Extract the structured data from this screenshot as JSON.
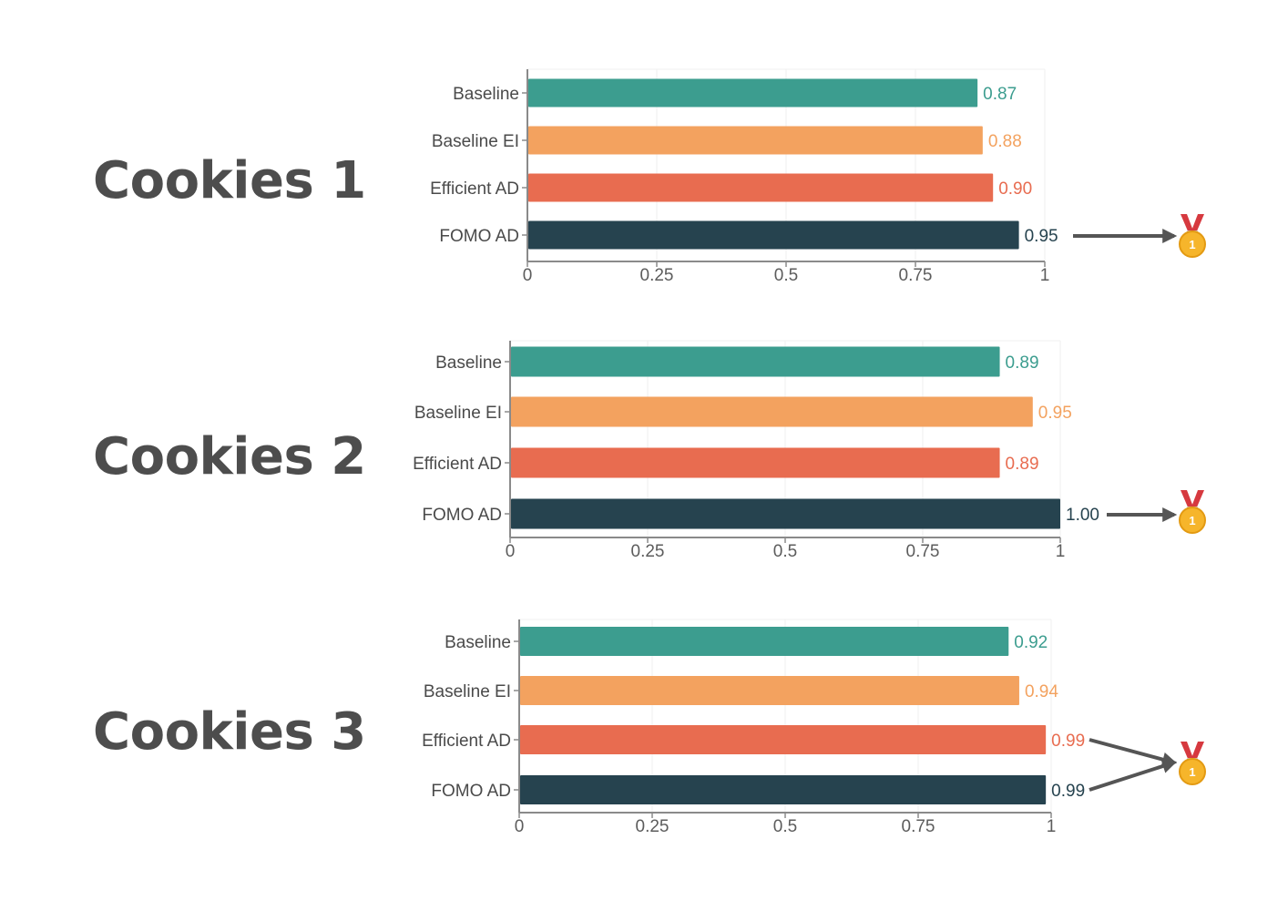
{
  "chart_data": [
    {
      "type": "bar",
      "title": "Cookies 1",
      "orientation": "horizontal",
      "categories": [
        "Baseline",
        "Baseline EI",
        "Efficient AD",
        "FOMO AD"
      ],
      "values": [
        0.87,
        0.88,
        0.9,
        0.95
      ],
      "value_labels": [
        "0.87",
        "0.88",
        "0.90",
        "0.95"
      ],
      "xlim": [
        0,
        1
      ],
      "xticks": [
        "0",
        "0.25",
        "0.5",
        "0.75",
        "1"
      ],
      "winners": [
        3
      ],
      "grid": true
    },
    {
      "type": "bar",
      "title": "Cookies 2",
      "orientation": "horizontal",
      "categories": [
        "Baseline",
        "Baseline EI",
        "Efficient AD",
        "FOMO AD"
      ],
      "values": [
        0.89,
        0.95,
        0.89,
        1.0
      ],
      "value_labels": [
        "0.89",
        "0.95",
        "0.89",
        "1.00"
      ],
      "xlim": [
        0,
        1
      ],
      "xticks": [
        "0",
        "0.25",
        "0.5",
        "0.75",
        "1"
      ],
      "winners": [
        3
      ],
      "grid": true
    },
    {
      "type": "bar",
      "title": "Cookies 3",
      "orientation": "horizontal",
      "categories": [
        "Baseline",
        "Baseline EI",
        "Efficient AD",
        "FOMO AD"
      ],
      "values": [
        0.92,
        0.94,
        0.99,
        0.99
      ],
      "value_labels": [
        "0.92",
        "0.94",
        "0.99",
        "0.99"
      ],
      "xlim": [
        0,
        1
      ],
      "xticks": [
        "0",
        "0.25",
        "0.5",
        "0.75",
        "1"
      ],
      "winners": [
        2,
        3
      ],
      "grid": true
    }
  ],
  "bar_colors": [
    "#3c9d8f",
    "#f3a25f",
    "#e86c50",
    "#26434f"
  ],
  "label_colors": [
    "#3c9d8f",
    "#f3a25f",
    "#e86c50",
    "#26434f"
  ],
  "winner_marker": {
    "icon": "gold-medal-icon",
    "medal_text": "1",
    "ribbon_color": "#d6393f",
    "medal_color": "#f6b52b"
  }
}
